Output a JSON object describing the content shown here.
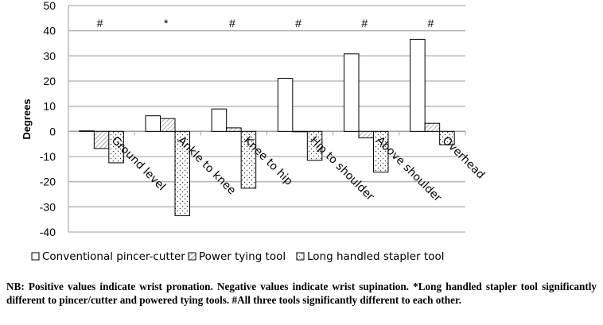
{
  "chart_data": {
    "type": "bar",
    "title": "",
    "xlabel": "",
    "ylabel": "Degrees",
    "ylim": [
      -40,
      50
    ],
    "yticks": [
      -40,
      -30,
      -20,
      -10,
      0,
      10,
      20,
      30,
      40,
      50
    ],
    "grid": true,
    "legend_placement": "bottom",
    "categories": [
      "Ground level",
      "Ankle to knee",
      "Knee to hip",
      "Hip to shoulder",
      "Above shoulder",
      "Overhead"
    ],
    "annotations": [
      "#",
      "*",
      "#",
      "#",
      "#",
      "#"
    ],
    "series": [
      {
        "name": "Conventional pincer-cutter",
        "pattern": "white",
        "values": [
          0.2,
          6.2,
          8.9,
          21.1,
          30.8,
          36.6
        ]
      },
      {
        "name": "Power tying tool",
        "pattern": "diagonal-hatch",
        "values": [
          -6.8,
          5.1,
          1.4,
          0,
          -2.6,
          3.2
        ]
      },
      {
        "name": "Long handled stapler tool",
        "pattern": "dotted",
        "values": [
          -12.5,
          -33.5,
          -22.6,
          -11.5,
          -16.2,
          -5.3
        ]
      }
    ]
  },
  "footnote": "NB: Positive values indicate wrist pronation. Negative values indicate wrist supination. *Long handled stapler tool significantly different to pincer/cutter and powered tying tools. #All three tools significantly different to each other."
}
